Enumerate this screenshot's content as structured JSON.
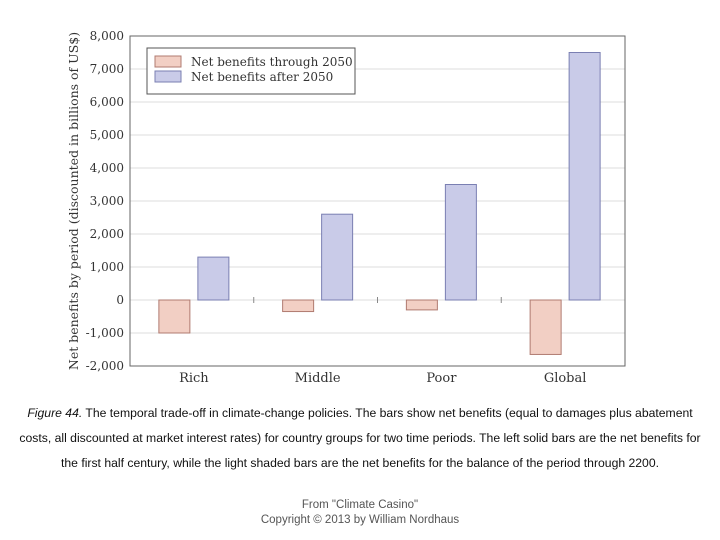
{
  "chart_data": {
    "type": "bar",
    "ylabel": "Net benefits by period (discounted in billions of US$)",
    "xlabel": "",
    "ylim": [
      -2000,
      8000
    ],
    "yticks": [
      -2000,
      -1000,
      0,
      1000,
      2000,
      3000,
      4000,
      5000,
      6000,
      7000,
      8000
    ],
    "ytick_labels": [
      "-2,000",
      "-1,000",
      "0",
      "1,000",
      "2,000",
      "3,000",
      "4,000",
      "5,000",
      "6,000",
      "7,000",
      "8,000"
    ],
    "categories": [
      "Rich",
      "Middle",
      "Poor",
      "Global"
    ],
    "series": [
      {
        "name": "Net benefits through 2050",
        "values": [
          -1000,
          -350,
          -300,
          -1650
        ],
        "color": "#f2cfc4"
      },
      {
        "name": "Net benefits after 2050",
        "values": [
          1300,
          2600,
          3500,
          7500
        ],
        "color": "#c9cbe8"
      }
    ],
    "grid": true,
    "legend_position": "top-left"
  },
  "caption": {
    "lead": "Figure 44.",
    "text": " The temporal trade-off in climate-change policies. The bars show net benefits (equal to damages plus abatement costs, all discounted at market interest rates) for country groups for two time periods. The left solid bars are the net benefits for the first half century, while the light shaded bars are the net benefits for the balance of the period through 2200."
  },
  "source": {
    "line1": "From \"Climate Casino\"",
    "line2": "Copyright © 2013 by William Nordhaus"
  }
}
